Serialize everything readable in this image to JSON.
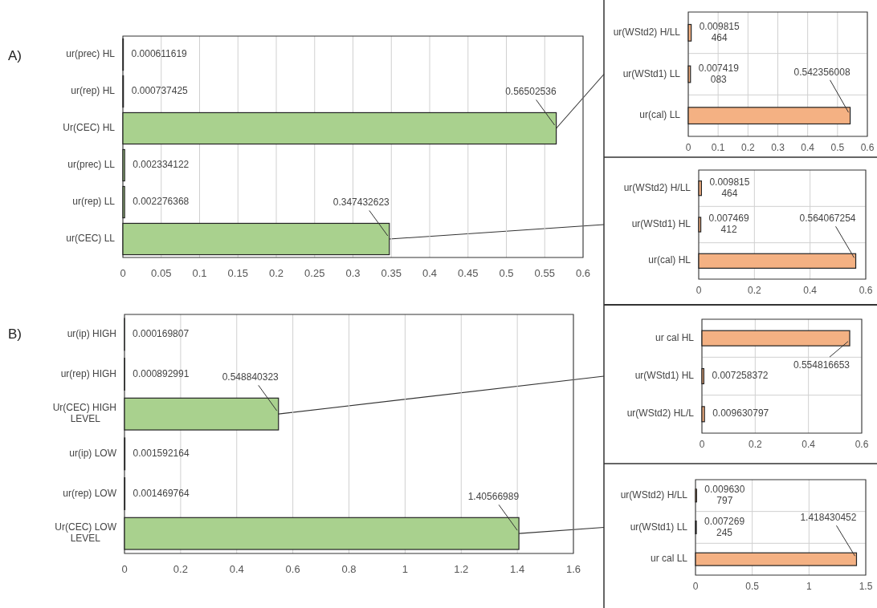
{
  "chart_data": [
    {
      "type": "bar",
      "orientation": "horizontal",
      "title": "A)",
      "categories": [
        "ur(prec) HL",
        "ur(rep) HL",
        "Ur(CEC)   HL",
        "ur(prec) LL",
        "ur(rep) LL",
        "ur(CEC) LL"
      ],
      "values": [
        0.000611619,
        0.000737425,
        0.56502536,
        0.002334122,
        0.002276368,
        0.347432623
      ],
      "color": "#a9d18e",
      "xlim": [
        0,
        0.6
      ],
      "xticks": [
        0,
        0.05,
        0.1,
        0.15,
        0.2,
        0.25,
        0.3,
        0.35,
        0.4,
        0.45,
        0.5,
        0.55,
        0.6
      ],
      "grid": "x",
      "data_labels": true
    },
    {
      "type": "bar",
      "orientation": "horizontal",
      "categories": [
        "ur(WStd2) H/LL",
        "ur(WStd1) LL",
        "ur(cal) LL"
      ],
      "values": [
        0.009815464,
        0.007419083,
        0.542356008
      ],
      "color": "#f4b183",
      "xlim": [
        0,
        0.6
      ],
      "xticks": [
        0,
        0.1,
        0.2,
        0.3,
        0.4,
        0.5,
        0.6
      ],
      "grid": true,
      "data_labels": true
    },
    {
      "type": "bar",
      "orientation": "horizontal",
      "categories": [
        "ur(WStd2) H/LL",
        "ur(WStd1) HL",
        "ur(cal) HL"
      ],
      "values": [
        0.009815464,
        0.007469412,
        0.564067254
      ],
      "color": "#f4b183",
      "xlim": [
        0,
        0.6
      ],
      "xticks": [
        0,
        0.2,
        0.4,
        0.6
      ],
      "grid": true,
      "data_labels": true
    },
    {
      "type": "bar",
      "orientation": "horizontal",
      "title": "B)",
      "categories": [
        "ur(ip) HIGH",
        "ur(rep) HIGH",
        "Ur(CEC) HIGH LEVEL",
        "ur(ip) LOW",
        "ur(rep) LOW",
        "Ur(CEC) LOW LEVEL"
      ],
      "values": [
        0.000169807,
        0.000892991,
        0.548840323,
        0.001592164,
        0.001469764,
        1.40566989
      ],
      "color": "#a9d18e",
      "xlim": [
        0,
        1.6
      ],
      "xticks": [
        0,
        0.2,
        0.4,
        0.6,
        0.8,
        1,
        1.2,
        1.4,
        1.6
      ],
      "grid": "x",
      "data_labels": true
    },
    {
      "type": "bar",
      "orientation": "horizontal",
      "categories": [
        "ur cal HL",
        "ur(WStd1) HL",
        "ur(WStd2) HL/L"
      ],
      "values": [
        0.554816653,
        0.007258372,
        0.009630797
      ],
      "color": "#f4b183",
      "xlim": [
        0,
        0.6
      ],
      "xticks": [
        0,
        0.2,
        0.4,
        0.6
      ],
      "grid": true,
      "data_labels": true
    },
    {
      "type": "bar",
      "orientation": "horizontal",
      "categories": [
        "ur(WStd2) H/LL",
        "ur(WStd1) LL",
        "ur cal LL"
      ],
      "values": [
        0.009630797,
        0.007269245,
        1.418430452
      ],
      "color": "#f4b183",
      "xlim": [
        0,
        1.5
      ],
      "xticks": [
        0,
        0.5,
        1,
        1.5
      ],
      "grid": true,
      "data_labels": true
    }
  ]
}
